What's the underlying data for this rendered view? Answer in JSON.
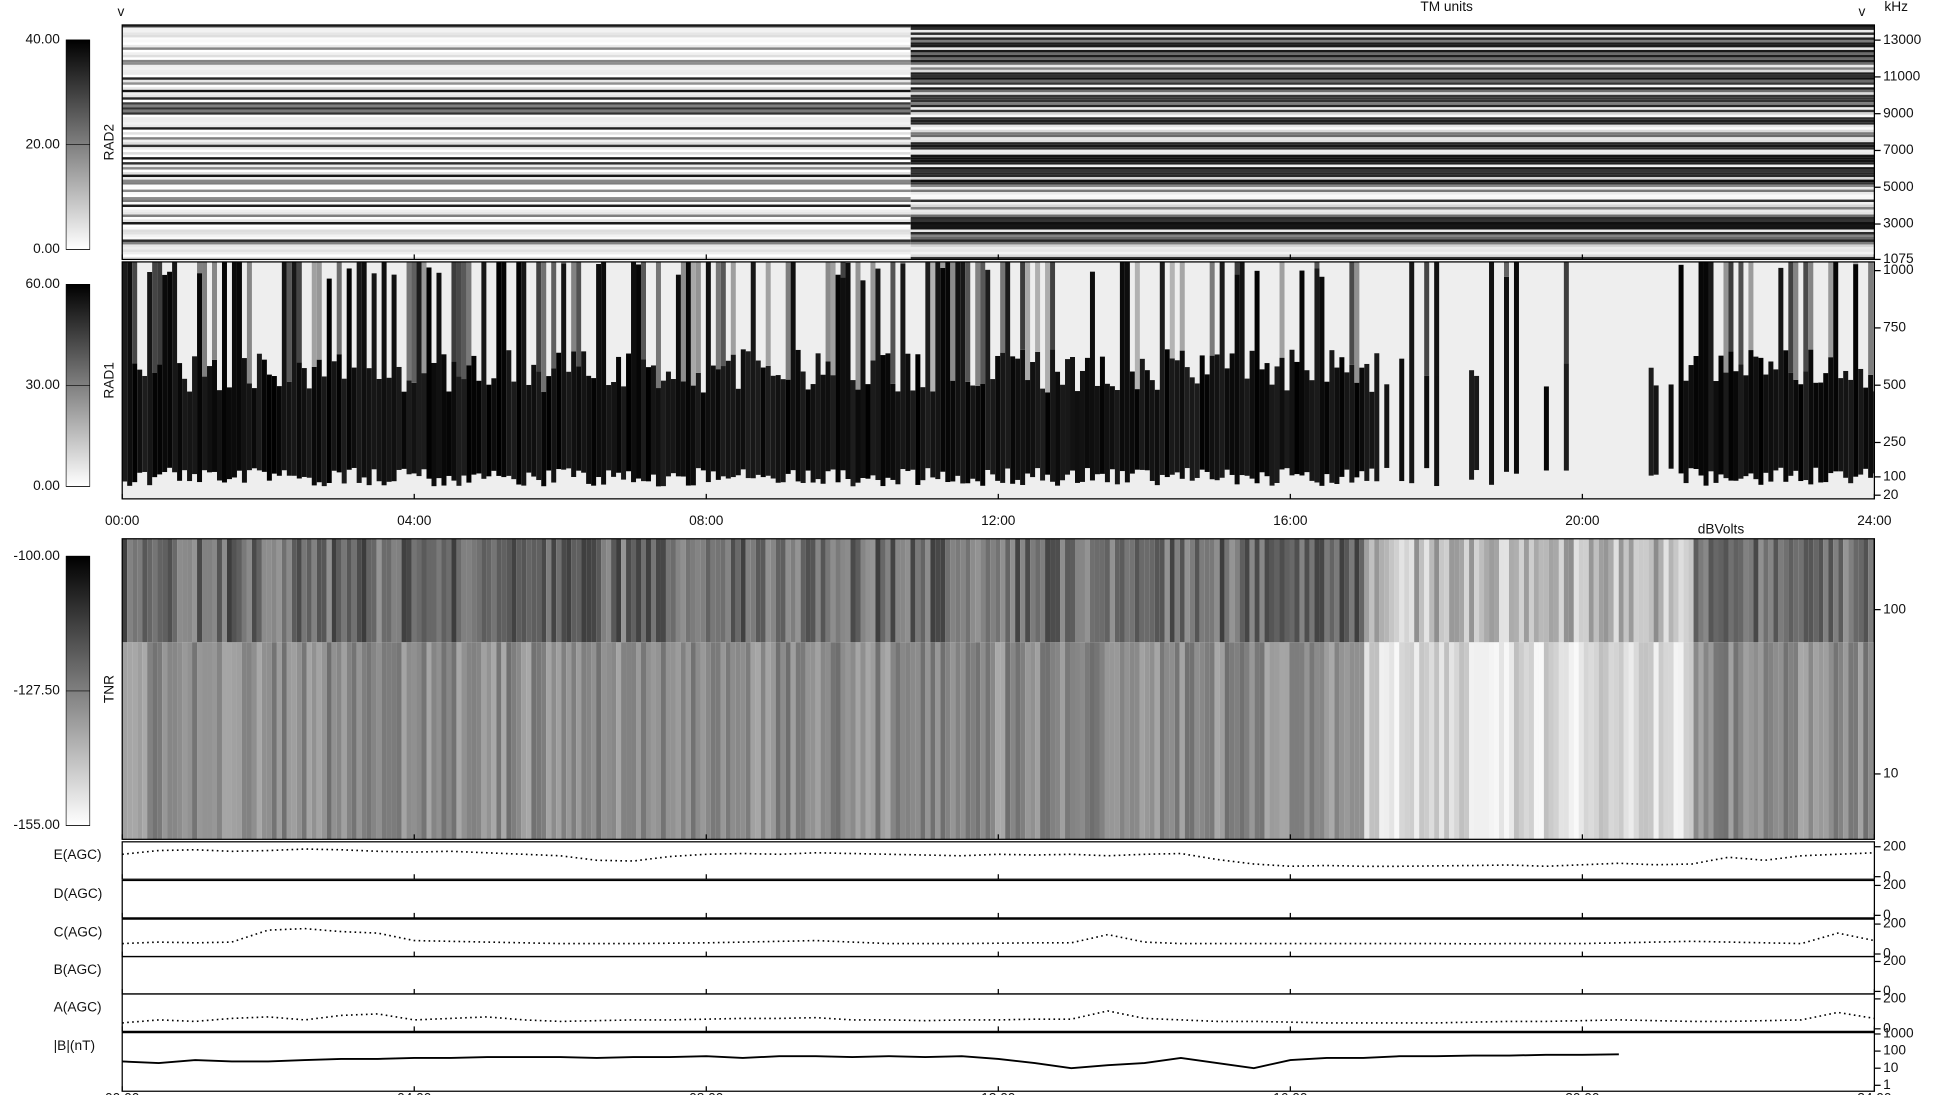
{
  "annotations": {
    "left_mark": "v",
    "right_mark": "v",
    "rad2_unit": "TM units",
    "freq_unit": "kHz",
    "tnr_unit": "dBVolts"
  },
  "time_axis": {
    "xlim": [
      0,
      24
    ],
    "xticks": [
      {
        "value": 0,
        "label": "00:00"
      },
      {
        "value": 4,
        "label": "04:00"
      },
      {
        "value": 8,
        "label": "08:00"
      },
      {
        "value": 12,
        "label": "12:00"
      },
      {
        "value": 16,
        "label": "16:00"
      },
      {
        "value": 20,
        "label": "20:00"
      },
      {
        "value": 24,
        "label": "24:00"
      }
    ]
  },
  "chart_data": [
    {
      "type": "spectrogram",
      "y_label": "RAD2",
      "clim": [
        0,
        40
      ],
      "colorbar_ticks": [
        {
          "value": 40,
          "label": "40.00"
        },
        {
          "value": 20,
          "label": "20.00"
        },
        {
          "value": 0,
          "label": "0.00"
        }
      ],
      "ylim": [
        1075,
        13825
      ],
      "yticks": [
        13000,
        11000,
        9000,
        7000,
        5000,
        3000,
        1075
      ]
    },
    {
      "type": "spectrogram",
      "y_label": "RAD1",
      "clim": [
        0,
        60
      ],
      "colorbar_ticks": [
        {
          "value": 60,
          "label": "60.00"
        },
        {
          "value": 30,
          "label": "30.00"
        },
        {
          "value": 0,
          "label": "0.00"
        }
      ],
      "ylim": [
        4,
        1038
      ],
      "yticks": [
        1000,
        750,
        500,
        250,
        100,
        20
      ]
    },
    {
      "type": "spectrogram",
      "y_label": "TNR",
      "clim": [
        -155,
        -100
      ],
      "colorbar_ticks": [
        {
          "value": -100,
          "label": "-100.00"
        },
        {
          "value": -127.5,
          "label": "-127.50"
        },
        {
          "value": -155,
          "label": "-155.00"
        }
      ],
      "ylim": [
        4,
        270
      ],
      "yscale": "log",
      "yticks": [
        100,
        10
      ]
    },
    {
      "type": "line",
      "y_label": "E(AGC)",
      "ylim": [
        -17,
        233
      ],
      "yticks": [
        200,
        0
      ],
      "x": [
        0,
        0.5,
        1,
        1.5,
        2,
        2.5,
        3,
        3.5,
        4,
        4.5,
        5,
        5.5,
        6,
        6.5,
        7,
        7.5,
        8,
        8.5,
        9,
        9.5,
        10,
        10.5,
        11,
        11.5,
        12,
        12.5,
        13,
        13.5,
        14,
        14.5,
        15,
        15.5,
        16,
        16.5,
        17,
        17.5,
        18,
        18.5,
        19,
        19.5,
        20,
        20.5,
        21,
        21.5,
        22,
        22.5,
        23,
        23.5,
        24
      ],
      "values": [
        150,
        175,
        180,
        170,
        175,
        185,
        180,
        170,
        165,
        170,
        160,
        150,
        140,
        110,
        105,
        135,
        150,
        155,
        150,
        160,
        155,
        150,
        145,
        140,
        150,
        145,
        150,
        140,
        150,
        155,
        115,
        85,
        70,
        75,
        70,
        70,
        72,
        75,
        78,
        70,
        80,
        90,
        80,
        85,
        130,
        110,
        140,
        150,
        160
      ]
    },
    {
      "type": "line",
      "y_label": "D(AGC)",
      "ylim": [
        -17,
        233
      ],
      "yticks": [
        200,
        0
      ],
      "x": [],
      "values": []
    },
    {
      "type": "line",
      "y_label": "C(AGC)",
      "ylim": [
        -17,
        233
      ],
      "yticks": [
        200,
        0
      ],
      "x": [
        0,
        0.5,
        1,
        1.5,
        2,
        2.5,
        3,
        3.5,
        4,
        4.5,
        5,
        5.5,
        6,
        6.5,
        7,
        7.5,
        8,
        8.5,
        9,
        9.5,
        10,
        10.5,
        11,
        11.5,
        12,
        12.5,
        13,
        13.5,
        14,
        14.5,
        15,
        15.5,
        16,
        16.5,
        17,
        17.5,
        18,
        18.5,
        19,
        19.5,
        20,
        20.5,
        21,
        21.5,
        22,
        22.5,
        23,
        23.5,
        24
      ],
      "values": [
        70,
        80,
        75,
        80,
        160,
        170,
        150,
        140,
        90,
        85,
        80,
        75,
        70,
        70,
        70,
        72,
        75,
        80,
        85,
        90,
        80,
        70,
        70,
        70,
        72,
        75,
        75,
        130,
        80,
        70,
        70,
        70,
        70,
        70,
        70,
        70,
        70,
        68,
        70,
        70,
        70,
        75,
        80,
        85,
        80,
        75,
        70,
        140,
        90
      ]
    },
    {
      "type": "line",
      "y_label": "B(AGC)",
      "ylim": [
        -17,
        233
      ],
      "yticks": [
        200,
        0
      ],
      "x": [],
      "values": []
    },
    {
      "type": "line",
      "y_label": "A(AGC)",
      "ylim": [
        -17,
        233
      ],
      "yticks": [
        200,
        0
      ],
      "x": [
        0,
        0.5,
        1,
        1.5,
        2,
        2.5,
        3,
        3.5,
        4,
        4.5,
        5,
        5.5,
        6,
        6.5,
        7,
        7.5,
        8,
        8.5,
        9,
        9.5,
        10,
        10.5,
        11,
        11.5,
        12,
        12.5,
        13,
        13.5,
        14,
        14.5,
        15,
        15.5,
        16,
        16.5,
        17,
        17.5,
        18,
        18.5,
        19,
        19.5,
        20,
        20.5,
        21,
        21.5,
        22,
        22.5,
        23,
        23.5,
        24
      ],
      "values": [
        40,
        60,
        50,
        70,
        80,
        60,
        90,
        100,
        60,
        70,
        80,
        60,
        50,
        55,
        60,
        60,
        65,
        70,
        70,
        75,
        60,
        60,
        55,
        60,
        60,
        65,
        65,
        120,
        70,
        60,
        50,
        50,
        45,
        40,
        40,
        40,
        40,
        45,
        50,
        50,
        55,
        60,
        55,
        50,
        50,
        55,
        60,
        110,
        70
      ]
    },
    {
      "type": "line",
      "y_label": "|B|(nT)",
      "ylim": [
        0.45,
        1200
      ],
      "yscale": "log",
      "yticks": [
        1000,
        100,
        10,
        1
      ],
      "x": [
        0,
        0.5,
        1,
        1.5,
        2,
        2.5,
        3,
        3.5,
        4,
        4.5,
        5,
        5.5,
        6,
        6.5,
        7,
        7.5,
        8,
        8.5,
        9,
        9.5,
        10,
        10.5,
        11,
        11.5,
        12,
        12.5,
        13,
        13.5,
        14,
        14.5,
        15,
        15.5,
        16,
        16.5,
        17,
        17.5,
        18,
        18.5,
        19,
        19.5,
        20,
        20.5,
        21,
        21.5,
        22,
        22.5,
        23,
        23.5,
        24
      ],
      "values": [
        25,
        20,
        30,
        25,
        25,
        30,
        35,
        35,
        40,
        40,
        45,
        45,
        45,
        40,
        45,
        45,
        50,
        40,
        50,
        50,
        45,
        50,
        45,
        50,
        35,
        20,
        10,
        15,
        20,
        40,
        20,
        10,
        30,
        40,
        40,
        50,
        50,
        55,
        55,
        60,
        60,
        65,
        null,
        null,
        null,
        null,
        null,
        null,
        null
      ]
    }
  ]
}
